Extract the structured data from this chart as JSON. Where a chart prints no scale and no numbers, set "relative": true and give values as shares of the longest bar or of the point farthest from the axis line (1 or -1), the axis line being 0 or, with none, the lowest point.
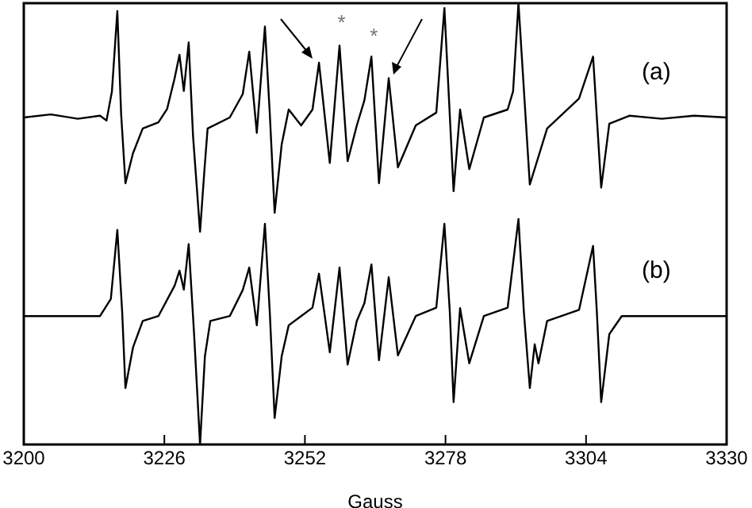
{
  "chart_data": {
    "type": "line",
    "relative": true,
    "xlabel": "Gauss",
    "xlim": [
      3200,
      3330
    ],
    "xticks": [
      3200,
      3226,
      3252,
      3278,
      3304,
      3330
    ],
    "grid": false,
    "legend": false,
    "marker": "none",
    "line_style": "solid",
    "series": [
      {
        "name": "(a)",
        "color": "#000000",
        "x": [
          3200,
          3205,
          3210,
          3214.1,
          3215.3,
          3216.3,
          3217.3,
          3218,
          3218.8,
          3220.2,
          3222,
          3224.9,
          3226.5,
          3227.9,
          3228.8,
          3229.6,
          3230.5,
          3231.3,
          3232.6,
          3233.4,
          3234,
          3238.1,
          3240.5,
          3241.7,
          3243.1,
          3244.6,
          3245.5,
          3246.4,
          3247.7,
          3249,
          3251.3,
          3253.4,
          3254.6,
          3256.6,
          3258.4,
          3259.9,
          3261.6,
          3263,
          3264.3,
          3265.7,
          3267.5,
          3269.2,
          3272.5,
          3276.3,
          3277.8,
          3279.5,
          3280.7,
          3282.4,
          3285.1,
          3289.5,
          3290.5,
          3291.5,
          3293.6,
          3296.8,
          3302.7,
          3305.3,
          3306.8,
          3308.3,
          3312,
          3318,
          3324,
          3330
        ],
        "values": [
          0.741,
          0.748,
          0.738,
          0.745,
          0.734,
          0.8,
          0.982,
          0.75,
          0.592,
          0.66,
          0.716,
          0.73,
          0.76,
          0.83,
          0.883,
          0.801,
          0.911,
          0.7,
          0.482,
          0.62,
          0.716,
          0.741,
          0.794,
          0.89,
          0.706,
          0.947,
          0.75,
          0.525,
          0.68,
          0.759,
          0.723,
          0.759,
          0.865,
          0.638,
          0.904,
          0.642,
          0.723,
          0.78,
          0.879,
          0.592,
          0.83,
          0.628,
          0.723,
          0.752,
          0.989,
          0.574,
          0.759,
          0.624,
          0.741,
          0.759,
          0.8,
          1,
          0.589,
          0.716,
          0.784,
          0.879,
          0.582,
          0.727,
          0.745,
          0.738,
          0.745,
          0.741
        ]
      },
      {
        "name": "(b)",
        "color": "#000000",
        "x": [
          3200,
          3214.1,
          3216.1,
          3217.3,
          3218.2,
          3218.8,
          3220.2,
          3222,
          3224.9,
          3227.9,
          3228.8,
          3229.6,
          3230.5,
          3231.5,
          3232.6,
          3233.5,
          3234.5,
          3238.1,
          3240.5,
          3241.7,
          3243.1,
          3244.6,
          3245.5,
          3246.4,
          3247.7,
          3249,
          3251.3,
          3253.4,
          3254.6,
          3256.6,
          3258.4,
          3259.9,
          3261.6,
          3263,
          3264.3,
          3265.7,
          3267.5,
          3269.2,
          3272.5,
          3276.3,
          3277.8,
          3278.8,
          3279.5,
          3280.7,
          3282.4,
          3285.1,
          3289.5,
          3291.5,
          3292.5,
          3293.6,
          3294.5,
          3295.2,
          3296.8,
          3302.7,
          3305.3,
          3306,
          3306.8,
          3308.3,
          3310.6,
          3330
        ],
        "values": [
          0.291,
          0.291,
          0.33,
          0.486,
          0.3,
          0.128,
          0.22,
          0.28,
          0.291,
          0.36,
          0.394,
          0.351,
          0.454,
          0.25,
          0,
          0.2,
          0.28,
          0.291,
          0.35,
          0.401,
          0.27,
          0.5,
          0.3,
          0.06,
          0.2,
          0.27,
          0.291,
          0.31,
          0.387,
          0.209,
          0.401,
          0.181,
          0.28,
          0.32,
          0.408,
          0.191,
          0.379,
          0.202,
          0.291,
          0.31,
          0.5,
          0.3,
          0.096,
          0.309,
          0.184,
          0.291,
          0.31,
          0.511,
          0.3,
          0.128,
          0.227,
          0.184,
          0.28,
          0.305,
          0.45,
          0.3,
          0.096,
          0.25,
          0.291,
          0.291
        ]
      }
    ],
    "annotations": [
      "*",
      "*"
    ]
  }
}
